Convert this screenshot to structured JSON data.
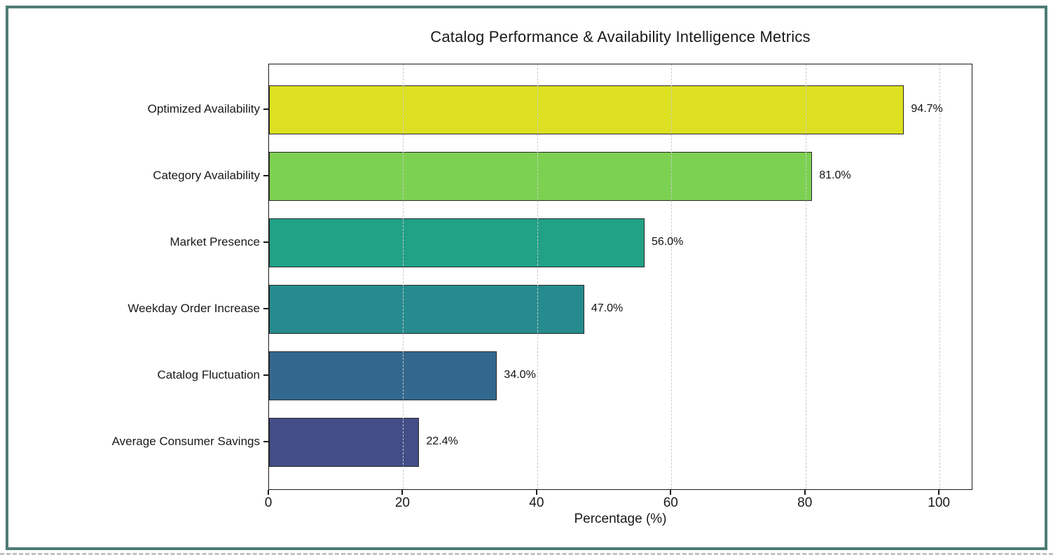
{
  "page": {
    "frame_border_color": "#4d7c74",
    "background_color": "#ffffff"
  },
  "chart_data": {
    "type": "bar",
    "orientation": "horizontal",
    "title": "Catalog Performance & Availability Intelligence Metrics",
    "xlabel": "Percentage (%)",
    "ylabel": "",
    "categories": [
      "Optimized Availability",
      "Category Availability",
      "Market Presence",
      "Weekday Order Increase",
      "Catalog Fluctuation",
      "Average Consumer Savings"
    ],
    "values": [
      94.7,
      81.0,
      56.0,
      47.0,
      34.0,
      22.4
    ],
    "value_labels": [
      "94.7%",
      "81.0%",
      "56.0%",
      "47.0%",
      "34.0%",
      "22.4%"
    ],
    "bar_colors": [
      "#dce020",
      "#7dd152",
      "#21a186",
      "#268b8e",
      "#33688e",
      "#434d87"
    ],
    "bar_edge_color": "#282828",
    "xlim": [
      0,
      105
    ],
    "x_ticks": [
      0,
      20,
      40,
      60,
      80,
      100
    ],
    "x_tick_labels": [
      "0",
      "20",
      "40",
      "60",
      "80",
      "100"
    ],
    "grid": "vertical-dashed-on-top",
    "grid_color": "#cacaca",
    "legend": "none"
  }
}
